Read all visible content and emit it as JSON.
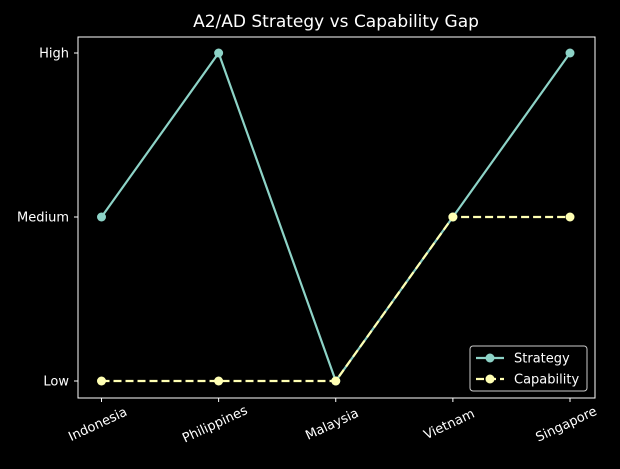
{
  "chart_data": {
    "type": "line",
    "title": "A2/AD Strategy vs Capability Gap",
    "xlabel": "",
    "ylabel": "",
    "categories": [
      "Indonesia",
      "Philippines",
      "Malaysia",
      "Vietnam",
      "Singapore"
    ],
    "y_categories": [
      "Low",
      "Medium",
      "High"
    ],
    "series": [
      {
        "name": "Strategy",
        "values": [
          "Medium",
          "High",
          "Low",
          "Medium",
          "High"
        ],
        "color": "#8dd3c7",
        "linestyle": "solid",
        "marker": "circle"
      },
      {
        "name": "Capability",
        "values": [
          "Low",
          "Low",
          "Low",
          "Medium",
          "Medium"
        ],
        "color": "#ffffb3",
        "linestyle": "dashed",
        "marker": "circle"
      }
    ],
    "grid": false,
    "legend_position": "lower-right",
    "background": "#000000"
  }
}
